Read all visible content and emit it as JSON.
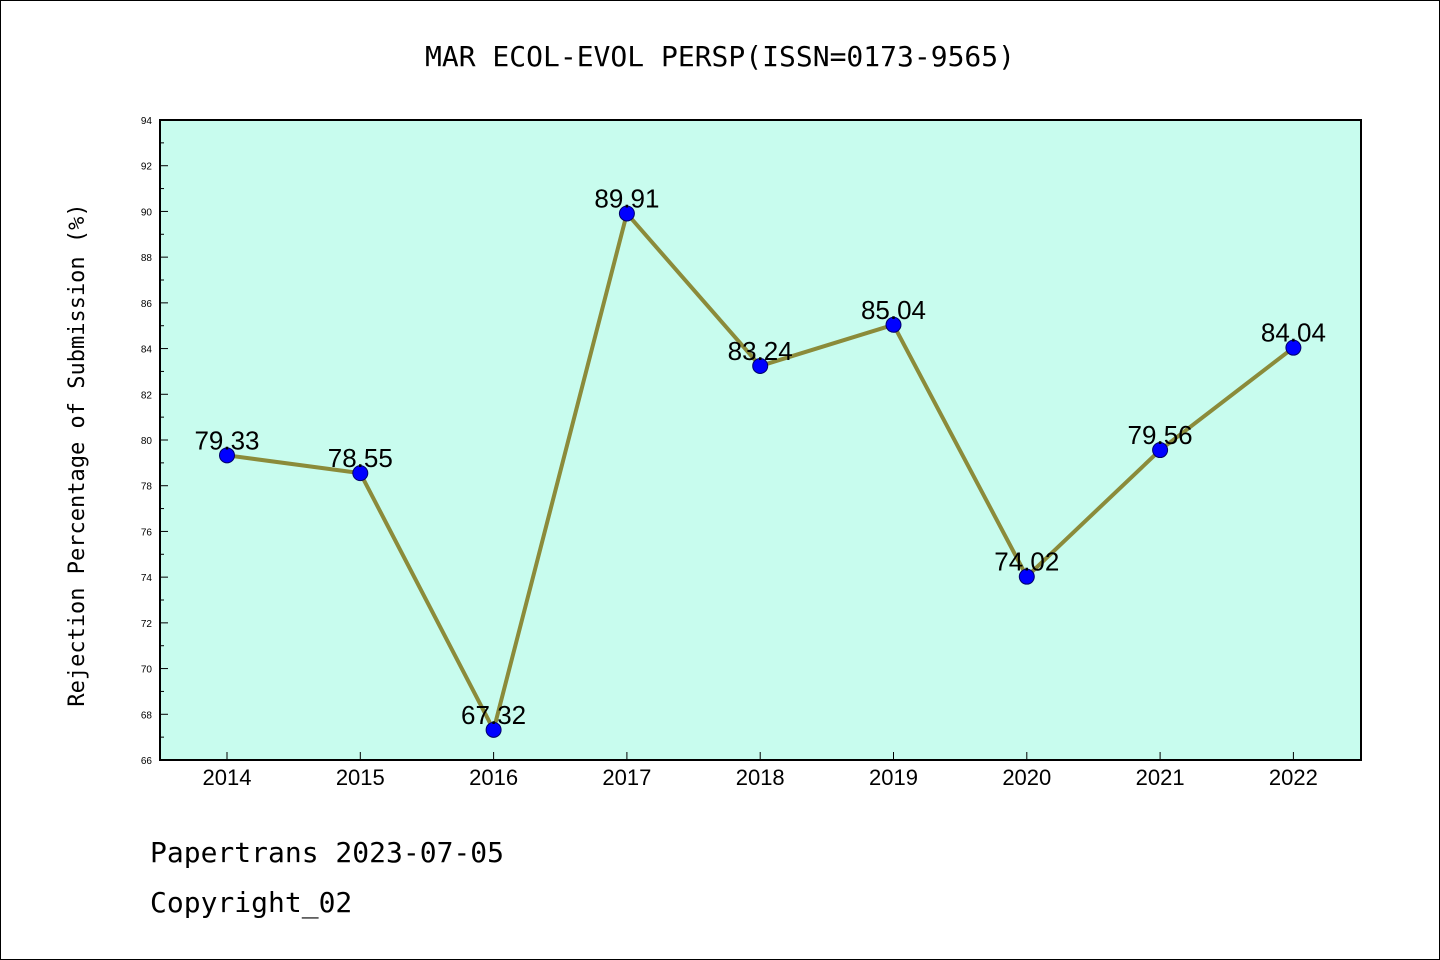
{
  "chart_data": {
    "type": "line",
    "title": "MAR ECOL-EVOL PERSP(ISSN=0173-9565)",
    "xlabel": "",
    "ylabel": "Rejection Percentage of Submission (%)",
    "categories": [
      "2014",
      "2015",
      "2016",
      "2017",
      "2018",
      "2019",
      "2020",
      "2021",
      "2022"
    ],
    "series": [
      {
        "values": [
          79.33,
          78.55,
          67.32,
          89.91,
          83.24,
          85.04,
          74.02,
          79.56,
          84.04
        ],
        "labels": [
          "79.33",
          "78.55",
          "67.32",
          "89.91",
          "83.24",
          "85.04",
          "74.02",
          "79.56",
          "84.04"
        ]
      }
    ],
    "ylim": [
      66,
      94
    ],
    "yticks": [
      "66",
      "68",
      "70",
      "72",
      "74",
      "76",
      "78",
      "80",
      "82",
      "84",
      "86",
      "88",
      "90",
      "92",
      "94"
    ],
    "grid": false,
    "legend": "none",
    "colors": {
      "plot_background": "#c8fcee",
      "line": "#8b8b3a",
      "marker": "#0000ff"
    }
  },
  "footer": {
    "line1": "Papertrans 2023-07-05",
    "line2": "Copyright_02"
  }
}
